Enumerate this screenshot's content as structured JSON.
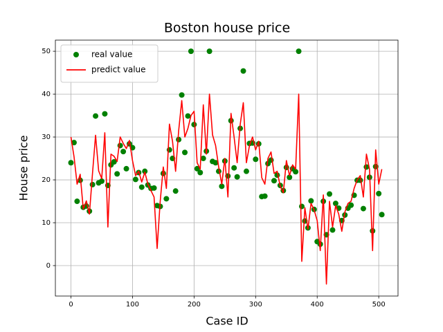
{
  "chart_data": {
    "type": "scatter",
    "title": "Boston house price",
    "x_label": "Case ID",
    "y_label": "House price",
    "x": [
      0,
      5,
      10,
      15,
      20,
      25,
      30,
      35,
      40,
      45,
      50,
      55,
      60,
      65,
      70,
      75,
      80,
      85,
      90,
      95,
      100,
      105,
      110,
      115,
      120,
      125,
      130,
      135,
      140,
      145,
      150,
      155,
      160,
      165,
      170,
      175,
      180,
      185,
      190,
      195,
      200,
      205,
      210,
      215,
      220,
      225,
      230,
      235,
      240,
      245,
      250,
      255,
      260,
      265,
      270,
      275,
      280,
      285,
      290,
      295,
      300,
      305,
      310,
      315,
      320,
      325,
      330,
      335,
      340,
      345,
      350,
      355,
      360,
      365,
      370,
      375,
      380,
      385,
      390,
      395,
      400,
      405,
      410,
      415,
      420,
      425,
      430,
      435,
      440,
      445,
      450,
      455,
      460,
      465,
      470,
      475,
      480,
      485,
      490,
      495,
      500,
      505
    ],
    "series": [
      {
        "name": "real value",
        "type": "scatter",
        "color": "#008000",
        "values": [
          24,
          28.7,
          15,
          19.9,
          13.6,
          13.9,
          12.7,
          18.9,
          34.9,
          19.3,
          19.7,
          35.4,
          18.7,
          23.5,
          24.2,
          21.4,
          28,
          26.6,
          22.6,
          28.4,
          27.5,
          20.1,
          21.7,
          18.3,
          22,
          18.8,
          18,
          18.1,
          14,
          13.8,
          21.5,
          15.6,
          27,
          25,
          17.4,
          29.4,
          39.8,
          26.4,
          34.9,
          50,
          32.9,
          22.6,
          21.7,
          25,
          26.7,
          50,
          24.3,
          24,
          22,
          18.5,
          24.4,
          20.9,
          33.8,
          22.8,
          20.7,
          32,
          45.4,
          22,
          28.5,
          28.6,
          24.8,
          28.4,
          16.1,
          16.2,
          23.8,
          24.6,
          19.8,
          21.1,
          18.7,
          17.5,
          22.9,
          20.6,
          22.6,
          21.9,
          50,
          13.8,
          10.4,
          8.8,
          15.1,
          13.1,
          5.6,
          5,
          15,
          7.2,
          16.7,
          8.3,
          14.5,
          13.4,
          10.5,
          11.8,
          13.4,
          14.1,
          16.4,
          19.9,
          19.9,
          13.3,
          23,
          20.6,
          8.1,
          23.1,
          16.8,
          11.9
        ]
      },
      {
        "name": "predict value",
        "type": "line",
        "color": "#ff0000",
        "values": [
          30.0,
          25.4,
          19.0,
          21.3,
          13.2,
          15.1,
          12.0,
          21.5,
          30.4,
          22.1,
          20.3,
          31.0,
          9.0,
          26.0,
          25.5,
          24.3,
          30.0,
          28.5,
          27.3,
          29.2,
          24.5,
          21.0,
          22.0,
          19.5,
          21.8,
          19.0,
          17.5,
          16.0,
          4.0,
          15.0,
          23.0,
          18.0,
          33.0,
          29.0,
          22.0,
          31.5,
          38.5,
          30.0,
          32.0,
          35.0,
          36.0,
          24.0,
          22.5,
          37.5,
          26.0,
          40.0,
          30.5,
          28.0,
          23.0,
          19.0,
          25.0,
          16.0,
          35.5,
          30.0,
          24.0,
          33.0,
          38.0,
          24.0,
          28.0,
          30.0,
          27.0,
          29.0,
          20.5,
          19.0,
          25.0,
          26.5,
          21.5,
          22.0,
          18.5,
          17.0,
          24.5,
          21.0,
          23.5,
          22.5,
          40.0,
          1.0,
          13.5,
          8.5,
          14.5,
          13.0,
          10.5,
          3.5,
          16.5,
          -4.3,
          15.0,
          9.0,
          14.0,
          12.0,
          8.0,
          12.5,
          14.5,
          15.0,
          18.0,
          20.0,
          21.0,
          16.0,
          26.0,
          22.5,
          3.5,
          27.0,
          19.0,
          22.5
        ]
      }
    ],
    "xlim": [
      -25.3,
      531.3
    ],
    "ylim": [
      -7.1,
      52.6
    ],
    "xticks": [
      0,
      100,
      200,
      300,
      400,
      500
    ],
    "yticks": [
      0,
      10,
      20,
      30,
      40,
      50
    ],
    "grid": true,
    "legend": "upper left"
  }
}
